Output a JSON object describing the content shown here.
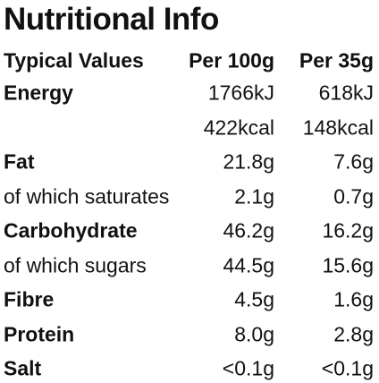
{
  "header": {
    "title": "Nutritional Info"
  },
  "table": {
    "columns": [
      "Typical Values",
      "Per 100g",
      "Per 35g"
    ],
    "rows": [
      {
        "label": "Energy",
        "bold": true,
        "per_100g": [
          "1766kJ",
          "422kcal"
        ],
        "per_35g": [
          "618kJ",
          "148kcal"
        ]
      },
      {
        "label": "Fat",
        "bold": true,
        "per_100g": [
          "21.8g"
        ],
        "per_35g": [
          "7.6g"
        ]
      },
      {
        "label": "of which saturates",
        "bold": false,
        "per_100g": [
          "2.1g"
        ],
        "per_35g": [
          "0.7g"
        ]
      },
      {
        "label": "Carbohydrate",
        "bold": true,
        "per_100g": [
          "46.2g"
        ],
        "per_35g": [
          "16.2g"
        ]
      },
      {
        "label": "of which sugars",
        "bold": false,
        "per_100g": [
          "44.5g"
        ],
        "per_35g": [
          "15.6g"
        ]
      },
      {
        "label": "Fibre",
        "bold": true,
        "per_100g": [
          "4.5g"
        ],
        "per_35g": [
          "1.6g"
        ]
      },
      {
        "label": "Protein",
        "bold": true,
        "per_100g": [
          "8.0g"
        ],
        "per_35g": [
          "2.8g"
        ]
      },
      {
        "label": "Salt",
        "bold": true,
        "per_100g": [
          "<0.1g"
        ],
        "per_35g": [
          "<0.1g"
        ]
      }
    ]
  }
}
